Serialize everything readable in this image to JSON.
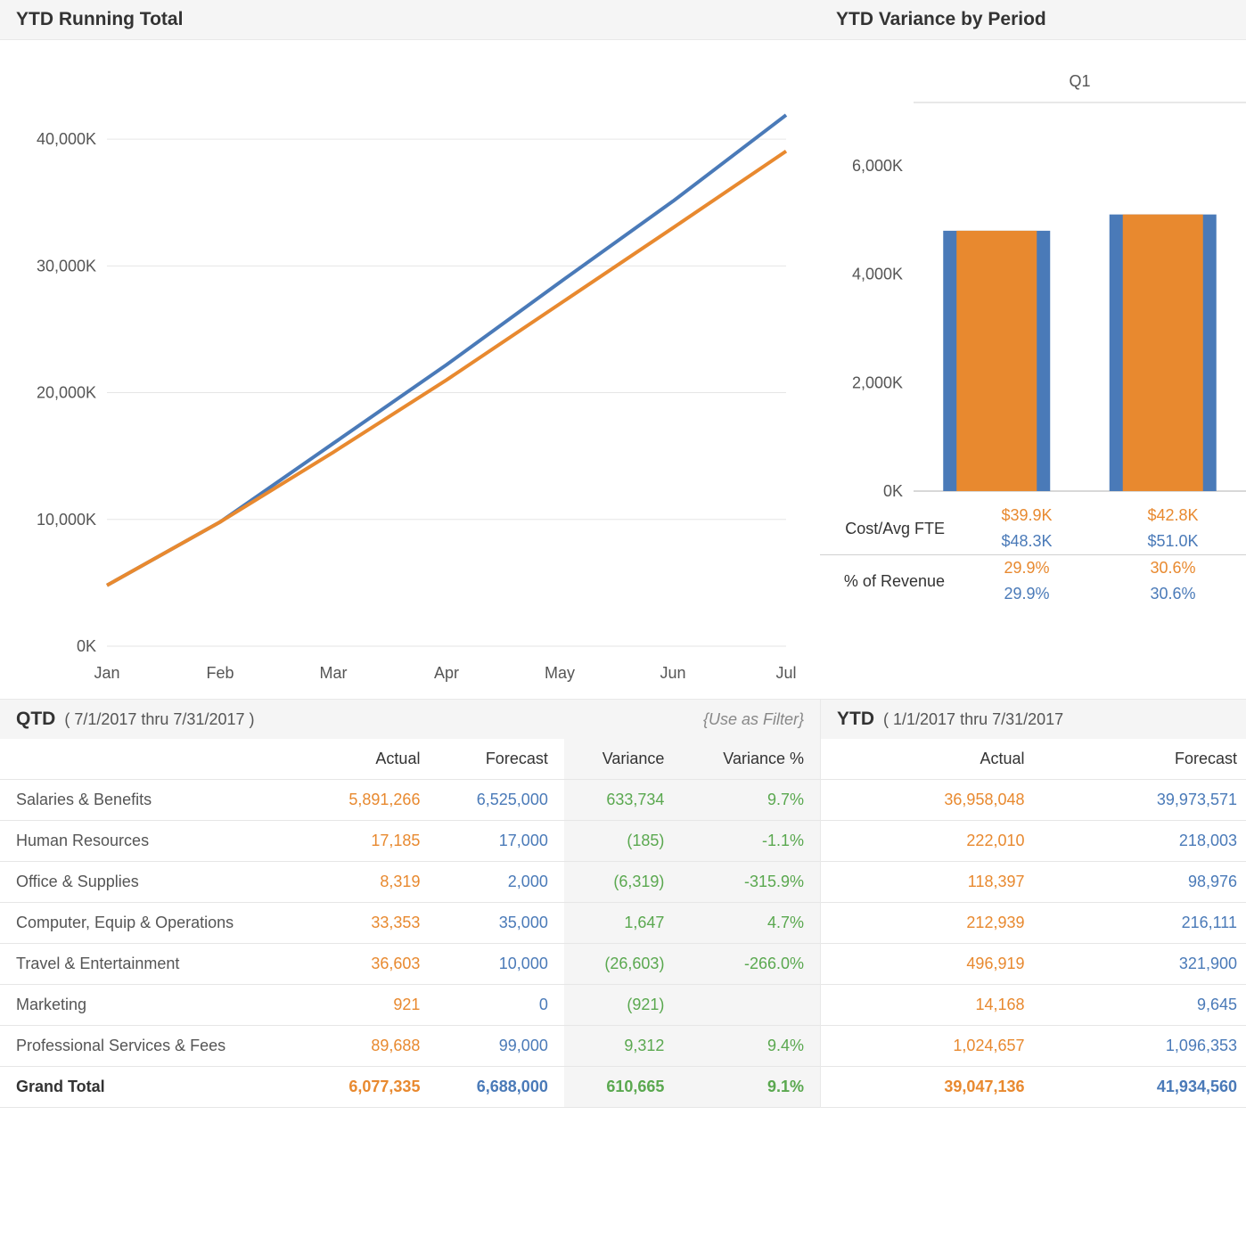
{
  "colors": {
    "actual": "#e8892f",
    "forecast": "#4a7ab8",
    "variance": "#5aa84f",
    "grid": "#e6e6e6",
    "panel_bg": "#f5f5f5",
    "text": "#333333",
    "muted": "#888888"
  },
  "line_chart": {
    "title": "YTD Running Total",
    "type": "line",
    "x_labels": [
      "Jan",
      "Feb",
      "Mar",
      "Apr",
      "May",
      "Jun",
      "Jul"
    ],
    "y_ticks": [
      0,
      10000,
      20000,
      30000,
      40000
    ],
    "y_tick_labels": [
      "0K",
      "10,000K",
      "20,000K",
      "30,000K",
      "40,000K"
    ],
    "ylim": [
      0,
      45000
    ],
    "series": [
      {
        "name": "Forecast",
        "color": "#4a7ab8",
        "width": 4,
        "values": [
          4800,
          9800,
          16000,
          22200,
          28700,
          35100,
          41900
        ]
      },
      {
        "name": "Actual",
        "color": "#e8892f",
        "width": 4,
        "values": [
          4800,
          9800,
          15300,
          21000,
          27000,
          33000,
          39050
        ]
      }
    ]
  },
  "bar_chart": {
    "title": "YTD Variance by Period",
    "type": "grouped-bar-overlay",
    "group_label": "Q1",
    "y_ticks": [
      0,
      2000,
      4000,
      6000
    ],
    "y_tick_labels": [
      "0K",
      "2,000K",
      "4,000K",
      "6,000K"
    ],
    "ylim": [
      0,
      7000
    ],
    "groups": [
      {
        "forecast": 4800,
        "actual": 4800,
        "forecast_color": "#4a7ab8",
        "actual_color": "#e8892f"
      },
      {
        "forecast": 5100,
        "actual": 5100,
        "forecast_color": "#4a7ab8",
        "actual_color": "#e8892f"
      }
    ],
    "metrics": [
      {
        "label": "Cost/Avg FTE",
        "rows": [
          {
            "cls": "or",
            "cells": [
              "$39.9K",
              "$42.8K"
            ]
          },
          {
            "cls": "bl",
            "cells": [
              "$48.3K",
              "$51.0K"
            ]
          }
        ]
      },
      {
        "label": "% of Revenue",
        "rows": [
          {
            "cls": "or",
            "cells": [
              "29.9%",
              "30.6%"
            ]
          },
          {
            "cls": "bl",
            "cells": [
              "29.9%",
              "30.6%"
            ]
          }
        ]
      }
    ]
  },
  "qtd": {
    "title": "QTD",
    "range": "( 7/1/2017 thru 7/31/2017 )",
    "hint": "{Use as Filter}",
    "cols": [
      "",
      "Actual",
      "Forecast",
      "Variance",
      "Variance %"
    ],
    "rows": [
      {
        "name": "Salaries & Benefits",
        "actual": "5,891,266",
        "forecast": "6,525,000",
        "variance": "633,734",
        "variance_p": "9.7%"
      },
      {
        "name": "Human Resources",
        "actual": "17,185",
        "forecast": "17,000",
        "variance": "(185)",
        "variance_p": "-1.1%"
      },
      {
        "name": "Office & Supplies",
        "actual": "8,319",
        "forecast": "2,000",
        "variance": "(6,319)",
        "variance_p": "-315.9%"
      },
      {
        "name": "Computer, Equip & Operations",
        "actual": "33,353",
        "forecast": "35,000",
        "variance": "1,647",
        "variance_p": "4.7%"
      },
      {
        "name": "Travel & Entertainment",
        "actual": "36,603",
        "forecast": "10,000",
        "variance": "(26,603)",
        "variance_p": "-266.0%"
      },
      {
        "name": "Marketing",
        "actual": "921",
        "forecast": "0",
        "variance": "(921)",
        "variance_p": ""
      },
      {
        "name": "Professional Services & Fees",
        "actual": "89,688",
        "forecast": "99,000",
        "variance": "9,312",
        "variance_p": "9.4%"
      }
    ],
    "grand": {
      "name": "Grand Total",
      "actual": "6,077,335",
      "forecast": "6,688,000",
      "variance": "610,665",
      "variance_p": "9.1%"
    }
  },
  "ytd": {
    "title": "YTD",
    "range": "( 1/1/2017 thru 7/31/2017",
    "cols": [
      "Actual",
      "Forecast"
    ],
    "rows": [
      {
        "actual": "36,958,048",
        "forecast": "39,973,571"
      },
      {
        "actual": "222,010",
        "forecast": "218,003"
      },
      {
        "actual": "118,397",
        "forecast": "98,976"
      },
      {
        "actual": "212,939",
        "forecast": "216,111"
      },
      {
        "actual": "496,919",
        "forecast": "321,900"
      },
      {
        "actual": "14,168",
        "forecast": "9,645"
      },
      {
        "actual": "1,024,657",
        "forecast": "1,096,353"
      }
    ],
    "grand": {
      "actual": "39,047,136",
      "forecast": "41,934,560"
    }
  }
}
